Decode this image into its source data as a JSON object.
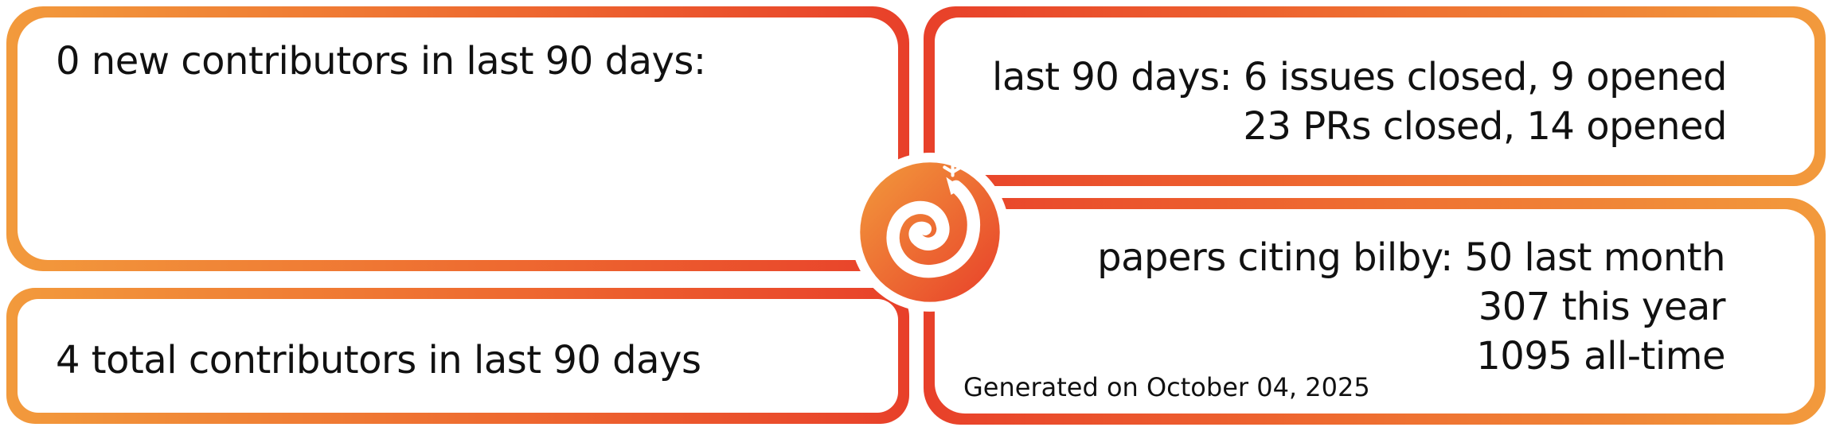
{
  "panels": {
    "new_contributors": "0 new contributors in last 90 days:",
    "total_contributors": "4 total contributors in last 90 days",
    "issues": {
      "line1": "last 90 days: 6 issues closed, 9 opened",
      "line2": "23 PRs closed, 14 opened"
    },
    "papers": {
      "line1": "papers citing bilby: 50 last month",
      "line2": "307 this year",
      "line3": "1095 all-time"
    },
    "generated": "Generated on October 04, 2025"
  },
  "logo": {
    "icon": "bilby-spiral-logo-icon",
    "colors": [
      "#f29a3c",
      "#e8402a"
    ]
  },
  "colors": {
    "orange": "#f29a3c",
    "red": "#e8402a",
    "text": "#111111",
    "background": "#ffffff"
  }
}
